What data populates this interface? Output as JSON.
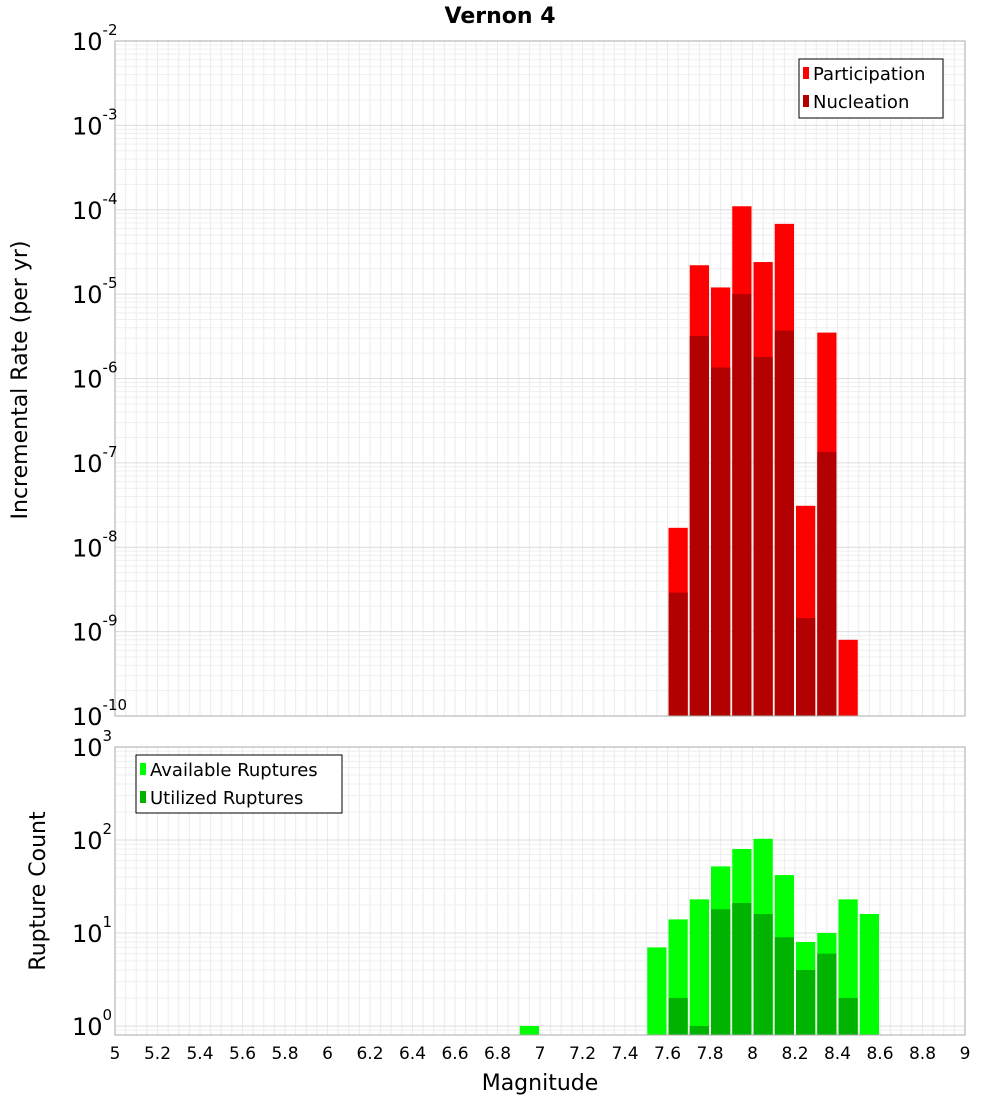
{
  "chart_data": [
    {
      "id": "rates",
      "type": "bar",
      "title": "Vernon 4",
      "xlabel": "Magnitude",
      "ylabel": "Incremental Rate (per yr)",
      "yscale": "log",
      "ylim": [
        1e-10,
        0.01
      ],
      "xlim": [
        5,
        9
      ],
      "ytick_exponents": [
        -10,
        -9,
        -8,
        -7,
        -6,
        -5,
        -4,
        -3,
        -2
      ],
      "legend": {
        "placement": "top-right",
        "entries": [
          "Participation",
          "Nucleation"
        ]
      },
      "colors": {
        "Participation": "#ff0000",
        "Nucleation": "#b30000"
      },
      "series": [
        {
          "name": "Participation",
          "x": [
            7.65,
            7.75,
            7.85,
            7.95,
            8.05,
            8.15,
            8.25,
            8.35,
            8.45
          ],
          "values": [
            1.7e-08,
            2.2e-05,
            1.2e-05,
            0.00011,
            2.4e-05,
            6.8e-05,
            3.1e-08,
            3.5e-06,
            8e-10
          ]
        },
        {
          "name": "Nucleation",
          "x": [
            7.65,
            7.75,
            7.85,
            7.95,
            8.05,
            8.15,
            8.25,
            8.35
          ],
          "values": [
            2.9e-09,
            3.2e-06,
            1.35e-06,
            1e-05,
            1.8e-06,
            3.7e-06,
            1.45e-09,
            1.35e-07
          ]
        }
      ]
    },
    {
      "id": "counts",
      "type": "bar",
      "title": "",
      "xlabel": "Magnitude",
      "ylabel": "Rupture Count",
      "yscale": "log",
      "ylim": [
        0.8,
        1000
      ],
      "xlim": [
        5,
        9
      ],
      "ytick_exponents": [
        0,
        1,
        2,
        3
      ],
      "xticks": [
        "5",
        "5.2",
        "5.4",
        "5.6",
        "5.8",
        "6",
        "6.2",
        "6.4",
        "6.6",
        "6.8",
        "7",
        "7.2",
        "7.4",
        "7.6",
        "7.8",
        "8",
        "8.2",
        "8.4",
        "8.6",
        "8.8",
        "9"
      ],
      "legend": {
        "placement": "top-left",
        "entries": [
          "Available Ruptures",
          "Utilized Ruptures"
        ]
      },
      "colors": {
        "Available Ruptures": "#00ff00",
        "Utilized Ruptures": "#00b300"
      },
      "series": [
        {
          "name": "Available Ruptures",
          "x": [
            6.95,
            7.55,
            7.65,
            7.75,
            7.85,
            7.95,
            8.05,
            8.15,
            8.25,
            8.35,
            8.45,
            8.55
          ],
          "values": [
            1,
            7,
            14,
            23,
            52,
            80,
            103,
            42,
            8,
            10,
            23,
            16
          ]
        },
        {
          "name": "Utilized Ruptures",
          "x": [
            7.65,
            7.75,
            7.85,
            7.95,
            8.05,
            8.15,
            8.25,
            8.35,
            8.45
          ],
          "values": [
            2,
            1,
            18,
            21,
            16,
            9,
            4,
            6,
            2
          ]
        }
      ]
    }
  ]
}
